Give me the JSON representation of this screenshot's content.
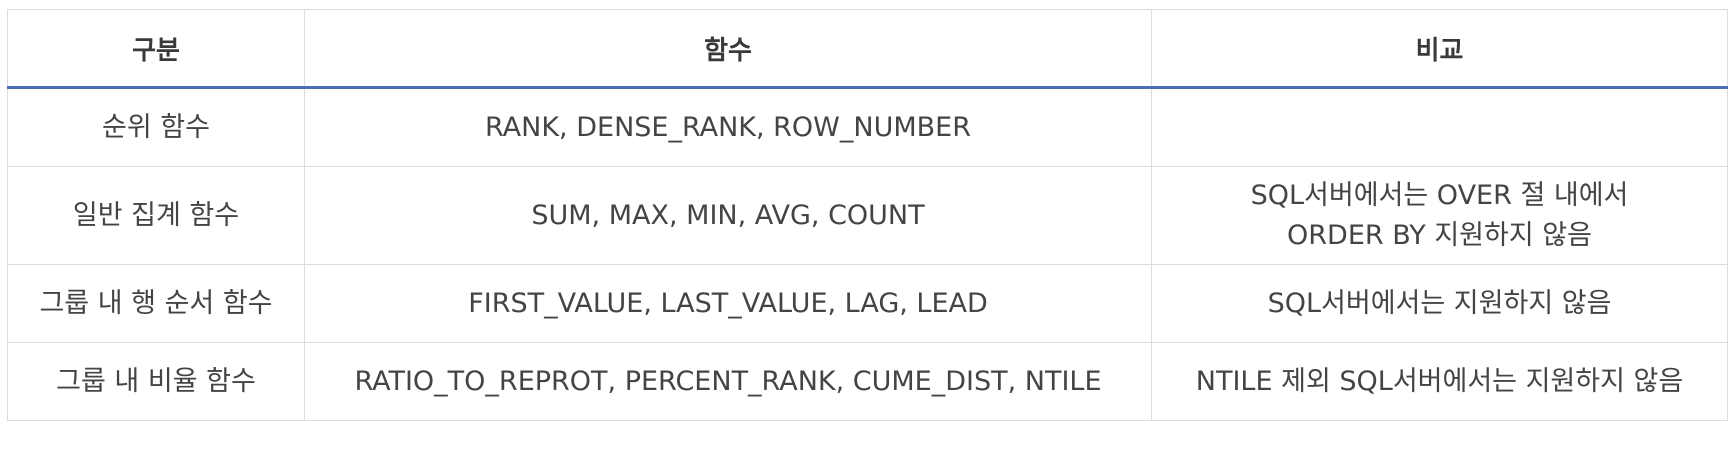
{
  "table": {
    "headers": [
      "구분",
      "함수",
      "비교"
    ],
    "rows": [
      {
        "category": "순위 함수",
        "functions": "RANK, DENSE_RANK, ROW_NUMBER",
        "comparison": []
      },
      {
        "category": "일반 집계 함수",
        "functions": "SUM, MAX, MIN, AVG, COUNT",
        "comparison": [
          "SQL서버에서는 OVER 절 내에서",
          "ORDER BY 지원하지 않음"
        ]
      },
      {
        "category": "그룹 내 행 순서 함수",
        "functions": "FIRST_VALUE, LAST_VALUE, LAG, LEAD",
        "comparison": [
          "SQL서버에서는 지원하지 않음"
        ]
      },
      {
        "category": "그룹 내 비율 함수",
        "functions": "RATIO_TO_REPROT, PERCENT_RANK, CUME_DIST, NTILE",
        "comparison": [
          "NTILE 제외 SQL서버에서는 지원하지 않음"
        ]
      }
    ]
  },
  "colors": {
    "header_rule": "#4a6fba",
    "border": "#dcdcdc"
  }
}
